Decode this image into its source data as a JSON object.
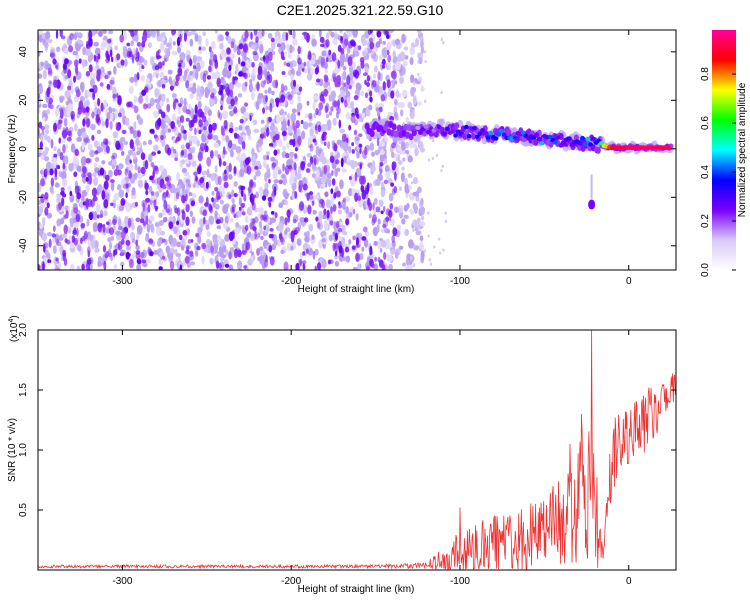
{
  "title": "C2E1.2025.321.22.59.G10",
  "chart_data": [
    {
      "type": "heatmap",
      "title": "C2E1.2025.321.22.59.G10",
      "xlabel": "Height of straight line (km)",
      "ylabel": "Frequency (Hz)",
      "xlim": [
        -350,
        28
      ],
      "ylim": [
        -50,
        49
      ],
      "xticks": [
        -300,
        -200,
        -100,
        0
      ],
      "yticks": [
        -40,
        -20,
        0,
        20,
        40
      ],
      "colorbar": {
        "label": "Normalized spectral amplitude",
        "range": [
          0,
          0.98
        ],
        "ticks": [
          "0.0",
          "0.2",
          "0.4",
          "0.6",
          "0.8"
        ],
        "stops": [
          "#ffffff",
          "#d8c8f8",
          "#7a00ff",
          "#0000ff",
          "#00ffff",
          "#00ff00",
          "#ffff00",
          "#ff0000",
          "#ff0099"
        ]
      },
      "noise_region": {
        "x_range": [
          -350,
          -130
        ],
        "y_range": [
          -50,
          49
        ],
        "typical_amplitude": 0.1
      },
      "signal_track": [
        {
          "x": -155,
          "freq": 8,
          "amp": 0.2
        },
        {
          "x": -140,
          "freq": 8,
          "amp": 0.22
        },
        {
          "x": -125,
          "freq": 7,
          "amp": 0.25
        },
        {
          "x": -110,
          "freq": 8,
          "amp": 0.3
        },
        {
          "x": -95,
          "freq": 7,
          "amp": 0.42
        },
        {
          "x": -80,
          "freq": 6,
          "amp": 0.45
        },
        {
          "x": -65,
          "freq": 5,
          "amp": 0.45
        },
        {
          "x": -50,
          "freq": 4,
          "amp": 0.45
        },
        {
          "x": -35,
          "freq": 3,
          "amp": 0.45
        },
        {
          "x": -20,
          "freq": 2,
          "amp": 0.5
        },
        {
          "x": -10,
          "freq": 0.5,
          "amp": 0.9
        },
        {
          "x": 0,
          "freq": 0.5,
          "amp": 0.95
        },
        {
          "x": 10,
          "freq": 0.5,
          "amp": 0.95
        },
        {
          "x": 25,
          "freq": 0.5,
          "amp": 0.95
        }
      ],
      "isolated_blobs": [
        {
          "x": -22,
          "freq": -23,
          "amp": 0.25
        }
      ]
    },
    {
      "type": "line",
      "title": "",
      "xlabel": "Height of straight line (km)",
      "ylabel": "SNR (10 * v/v)",
      "y_multiplier": "(x10^4)",
      "y_multiplier_base": "(x10",
      "y_multiplier_exp": "4",
      "y_multiplier_close": ")",
      "xlim": [
        -350,
        28
      ],
      "ylim": [
        0,
        2.0
      ],
      "xticks": [
        -300,
        -200,
        -100,
        0
      ],
      "yticks": [
        0.5,
        1.0,
        1.5,
        2.0
      ],
      "ytick_labels": [
        "0.5",
        "1.0",
        "1.5",
        "2.0"
      ],
      "series": [
        {
          "name": "SNR",
          "color": "#ee3333",
          "envelope_x": [
            -350,
            -300,
            -250,
            -200,
            -150,
            -120,
            -110,
            -100,
            -90,
            -80,
            -70,
            -60,
            -50,
            -40,
            -30,
            -22,
            -21,
            -15,
            -10,
            0,
            10,
            20,
            28
          ],
          "envelope_mean": [
            0.03,
            0.03,
            0.03,
            0.03,
            0.03,
            0.04,
            0.08,
            0.15,
            0.18,
            0.2,
            0.22,
            0.25,
            0.3,
            0.38,
            0.55,
            0.75,
            0.6,
            0.1,
            0.95,
            1.1,
            1.25,
            1.4,
            1.55
          ],
          "envelope_spread": [
            0.01,
            0.01,
            0.01,
            0.01,
            0.01,
            0.02,
            0.08,
            0.15,
            0.18,
            0.2,
            0.22,
            0.24,
            0.26,
            0.3,
            0.4,
            0.5,
            0.5,
            0.05,
            0.25,
            0.2,
            0.2,
            0.15,
            0.08
          ],
          "peaks": [
            {
              "x": -100,
              "y": 0.52
            },
            {
              "x": -45,
              "y": 0.7
            },
            {
              "x": -35,
              "y": 1.05
            },
            {
              "x": -28,
              "y": 1.3
            },
            {
              "x": -22,
              "y": 2.0
            }
          ]
        }
      ]
    }
  ]
}
